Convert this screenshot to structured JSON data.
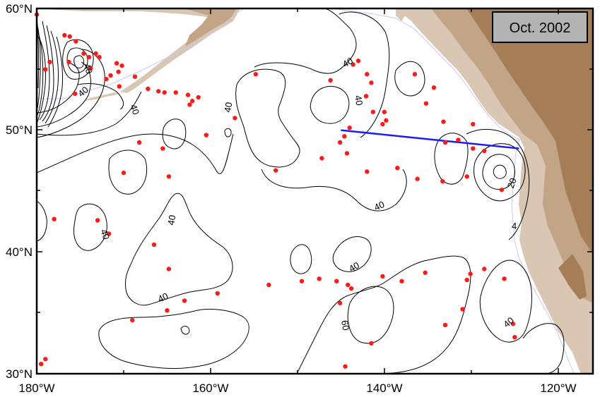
{
  "map": {
    "date_label": "Oct. 2002",
    "lon_ticks": [
      "180°W",
      "160°W",
      "140°W",
      "120°W"
    ],
    "lat_ticks": [
      "30°N",
      "40°N",
      "50°N",
      "60°N"
    ],
    "lon_range": [
      -180,
      -116
    ],
    "lat_range": [
      30,
      60
    ],
    "contour_labels": [
      "40",
      "40",
      "40",
      "40",
      "40",
      "40",
      "40",
      "40",
      "40",
      "40",
      "60",
      "20",
      "4"
    ],
    "section_line": {
      "start": [
        -145,
        50.0
      ],
      "end": [
        -124.5,
        48.5
      ],
      "color": "#1a1aff"
    },
    "colors": {
      "land_dark": "#a57e58",
      "land_mid": "#c2a487",
      "land_light": "#d9c6b3",
      "shelf": "#c7c9f5",
      "contour": "#000000",
      "station": "#ff1a1a",
      "label_box": "#b3b3b3"
    },
    "stations": [
      [
        -176.8,
        57.8
      ],
      [
        -176.2,
        57.7
      ],
      [
        -175.5,
        57.3
      ],
      [
        -174.6,
        56.3
      ],
      [
        -174.0,
        56.0
      ],
      [
        -173.2,
        56.3
      ],
      [
        -172.8,
        56.0
      ],
      [
        -178.5,
        55.6
      ],
      [
        -179.0,
        55.0
      ],
      [
        -176.3,
        55.6
      ],
      [
        -173.8,
        55.1
      ],
      [
        -170.8,
        55.5
      ],
      [
        -170.2,
        55.3
      ],
      [
        -170.6,
        54.8
      ],
      [
        -171.5,
        54.5
      ],
      [
        -172.0,
        54.2
      ],
      [
        -168.7,
        54.4
      ],
      [
        -167.2,
        53.4
      ],
      [
        -166.0,
        53.2
      ],
      [
        -165.3,
        53.1
      ],
      [
        -164.0,
        53.1
      ],
      [
        -162.6,
        52.9
      ],
      [
        -162.1,
        52.4
      ],
      [
        -162.4,
        52.1
      ],
      [
        -161.4,
        52.7
      ],
      [
        -175.6,
        53.0
      ],
      [
        -170.5,
        53.6
      ],
      [
        -168.2,
        49.0
      ],
      [
        -165.5,
        48.5
      ],
      [
        -160.5,
        49.6
      ],
      [
        -157.2,
        51.0
      ],
      [
        -154.8,
        54.6
      ],
      [
        -146.2,
        54.1
      ],
      [
        -143.6,
        55.4
      ],
      [
        -143.0,
        55.7
      ],
      [
        -142.0,
        54.6
      ],
      [
        -141.5,
        53.9
      ],
      [
        -142.1,
        52.8
      ],
      [
        -141.3,
        51.5
      ],
      [
        -140.0,
        51.5
      ],
      [
        -139.8,
        50.8
      ],
      [
        -140.2,
        50.5
      ],
      [
        -136.5,
        54.6
      ],
      [
        -134.3,
        53.5
      ],
      [
        -135.2,
        52.2
      ],
      [
        -133.2,
        50.7
      ],
      [
        -133.0,
        49.0
      ],
      [
        -131.5,
        49.2
      ],
      [
        -129.8,
        48.5
      ],
      [
        -128.5,
        48.3
      ],
      [
        -129.8,
        50.5
      ],
      [
        -145.1,
        49.0
      ],
      [
        -144.6,
        49.5
      ],
      [
        -144.0,
        50.2
      ],
      [
        -144.3,
        48.1
      ],
      [
        -142.0,
        46.6
      ],
      [
        -138.5,
        46.9
      ],
      [
        -136.2,
        46.0
      ],
      [
        -133.3,
        45.8
      ],
      [
        -130.5,
        46.2
      ],
      [
        -126.5,
        45.1
      ],
      [
        -152.5,
        46.7
      ],
      [
        -147.2,
        47.7
      ],
      [
        -170.0,
        46.5
      ],
      [
        -164.8,
        46.2
      ],
      [
        -178.0,
        42.7
      ],
      [
        -173.0,
        42.6
      ],
      [
        -171.7,
        41.5
      ],
      [
        -166.5,
        40.6
      ],
      [
        -164.8,
        38.6
      ],
      [
        -159.2,
        36.6
      ],
      [
        -165.0,
        35.2
      ],
      [
        -163.0,
        36.0
      ],
      [
        -169.0,
        34.4
      ],
      [
        -179.5,
        30.8
      ],
      [
        -179.0,
        31.2
      ],
      [
        -153.3,
        37.3
      ],
      [
        -149.5,
        37.6
      ],
      [
        -147.5,
        37.8
      ],
      [
        -145.5,
        37.6
      ],
      [
        -144.2,
        37.3
      ],
      [
        -143.8,
        37.0
      ],
      [
        -145.1,
        35.8
      ],
      [
        -140.2,
        38.0
      ],
      [
        -138.0,
        37.6
      ],
      [
        -135.3,
        38.3
      ],
      [
        -130.5,
        37.7
      ],
      [
        -130.1,
        38.2
      ],
      [
        -128.5,
        38.6
      ],
      [
        -126.2,
        37.8
      ],
      [
        -131.0,
        35.3
      ],
      [
        -133.0,
        34.0
      ],
      [
        -125.2,
        34.1
      ],
      [
        -125.0,
        33.0
      ],
      [
        -141.5,
        32.5
      ],
      [
        -144.5,
        30.6
      ],
      [
        -180.0,
        59.5
      ]
    ]
  }
}
